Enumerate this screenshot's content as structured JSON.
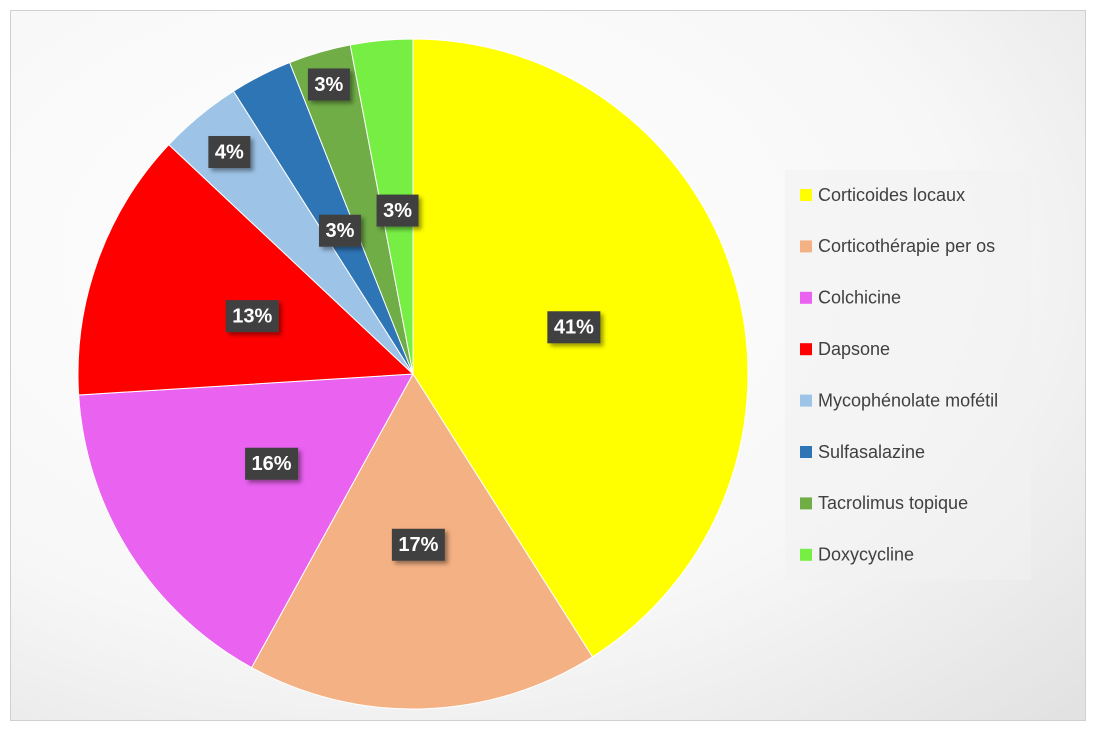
{
  "chart_data": {
    "type": "pie",
    "categories": [
      "Corticoides locaux",
      "Corticothérapie per os",
      "Colchicine",
      "Dapsone",
      "Mycophénolate mofétil",
      "Sulfasalazine",
      "Tacrolimus topique",
      "Doxycycline"
    ],
    "values": [
      41,
      17,
      16,
      13,
      4,
      3,
      3,
      3
    ],
    "value_labels": [
      "41%",
      "17%",
      "16%",
      "13%",
      "4%",
      "3%",
      "3%",
      "3%"
    ],
    "colors": [
      "#ffff00",
      "#f4b183",
      "#e962f0",
      "#ff0000",
      "#9dc3e6",
      "#2e75b6",
      "#70ad47",
      "#77ee44"
    ],
    "legend": "right"
  }
}
